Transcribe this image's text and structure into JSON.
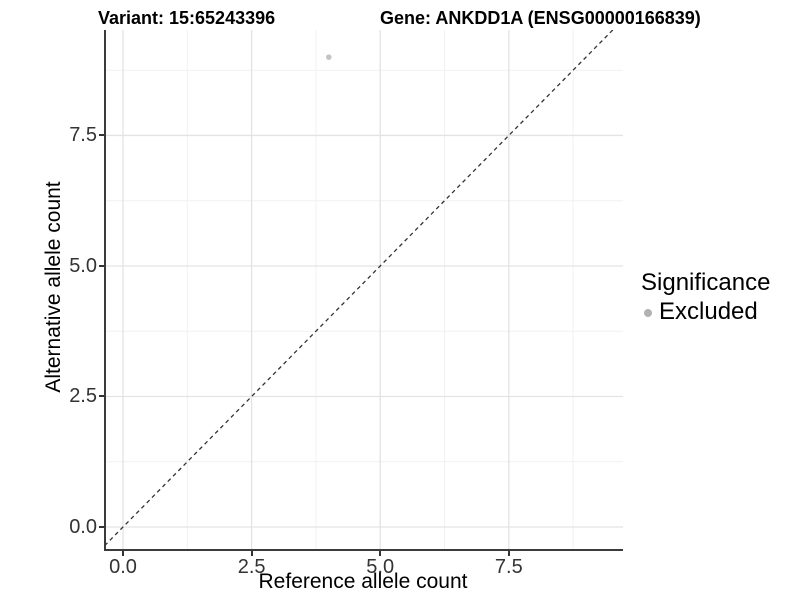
{
  "titles": {
    "variant": "Variant: 15:65243396",
    "gene": "Gene: ANKDD1A (ENSG00000166839)"
  },
  "axes": {
    "x": {
      "title": "Reference allele count",
      "tick_labels": [
        "0.0",
        "2.5",
        "5.0",
        "7.5"
      ]
    },
    "y": {
      "title": "Alternative allele count",
      "tick_labels": [
        "0.0",
        "2.5",
        "5.0",
        "7.5"
      ]
    }
  },
  "legend": {
    "title": "Significance",
    "items": [
      {
        "label": "Excluded",
        "color": "#b2b2b2"
      }
    ]
  },
  "chart_data": {
    "type": "scatter",
    "title": "Variant: 15:65243396 — Gene: ANKDD1A (ENSG00000166839)",
    "xlabel": "Reference allele count",
    "ylabel": "Alternative allele count",
    "xlim": [
      -0.37,
      9.72
    ],
    "ylim": [
      -0.46,
      9.52
    ],
    "x_major_ticks": [
      0,
      2.5,
      5,
      7.5
    ],
    "y_major_ticks": [
      0,
      2.5,
      5,
      7.5
    ],
    "x_minor_ticks": [
      1.25,
      3.75,
      6.25,
      8.75
    ],
    "y_minor_ticks": [
      1.25,
      3.75,
      6.25,
      8.75
    ],
    "grid": "major+minor",
    "legend_position": "right",
    "series": [
      {
        "name": "Excluded",
        "color": "#c4c4c4",
        "point_radius": 2.8,
        "points": [
          {
            "x": 4,
            "y": 9
          }
        ]
      }
    ],
    "reference_line": {
      "kind": "identity y=x",
      "style": "dashed",
      "from": [
        -0.46,
        -0.46
      ],
      "to": [
        9.6,
        9.6
      ],
      "color": "#333333"
    },
    "colors": {
      "grid_major": "#e3e3e3",
      "grid_minor": "#f1f1f1",
      "axis_line": "#3b3b3b",
      "tick_text": "#333333"
    }
  }
}
